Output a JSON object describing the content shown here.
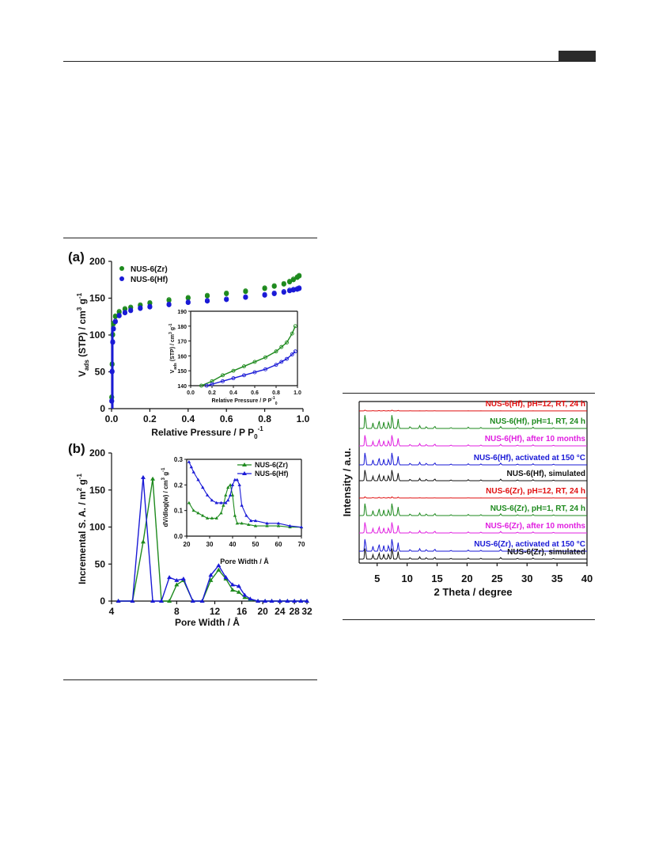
{
  "chart_data": [
    {
      "panel_label": "(a)",
      "type": "scatter",
      "xlabel": "Relative Pressure / P P",
      "xlabel_sub": "0",
      "xlabel_sup": "-1",
      "ylabel": "V",
      "ylabel_sub": "ads",
      "ylabel_rest": " (STP) / cm",
      "ylabel_sup1": "3",
      "ylabel_mid": " g",
      "ylabel_sup2": "-1",
      "xlim": [
        0.0,
        1.0
      ],
      "ylim": [
        0,
        200
      ],
      "xticks": [
        "0.0",
        "0.2",
        "0.4",
        "0.6",
        "0.8",
        "1.0"
      ],
      "yticks": [
        "0",
        "50",
        "100",
        "150",
        "200"
      ],
      "legend": "top-left",
      "series": [
        {
          "name": "NUS-6(Zr)",
          "color": "#1e8a1e",
          "x": [
            0.001,
            0.003,
            0.006,
            0.01,
            0.02,
            0.04,
            0.07,
            0.1,
            0.15,
            0.2,
            0.3,
            0.4,
            0.5,
            0.6,
            0.7,
            0.8,
            0.85,
            0.9,
            0.93,
            0.95,
            0.97,
            0.98
          ],
          "y": [
            15,
            60,
            100,
            115,
            125,
            131,
            135,
            137,
            140,
            143,
            147,
            150,
            153,
            156,
            159,
            163,
            166,
            169,
            172,
            175,
            178,
            180
          ]
        },
        {
          "name": "NUS-6(Hf)",
          "color": "#1a1ad6",
          "x": [
            0.001,
            0.003,
            0.006,
            0.01,
            0.02,
            0.04,
            0.07,
            0.1,
            0.15,
            0.2,
            0.3,
            0.4,
            0.5,
            0.6,
            0.7,
            0.8,
            0.85,
            0.9,
            0.93,
            0.95,
            0.97,
            0.98
          ],
          "y": [
            10,
            50,
            90,
            108,
            118,
            126,
            130,
            133,
            136,
            138,
            141,
            144,
            146,
            148,
            151,
            154,
            156,
            158,
            160,
            161,
            162,
            163
          ]
        }
      ],
      "inset": {
        "xlabel": "Relative Pressure / P P",
        "xlabel_sup": "-1",
        "xlabel_sub": "0",
        "ylabel": "V",
        "ylabel_sub": "ads",
        "ylabel_rest": " (STP) / cm",
        "ylabel_sup1": "3",
        "ylabel_mid": " g",
        "ylabel_sup2": "-1",
        "xlim": [
          0.0,
          1.0
        ],
        "ylim": [
          140,
          190
        ],
        "xticks": [
          "0.0",
          "0.2",
          "0.4",
          "0.6",
          "0.8",
          "1.0"
        ],
        "yticks": [
          "140",
          "150",
          "160",
          "170",
          "180",
          "190"
        ],
        "series": [
          {
            "name": "NUS-6(Zr)",
            "x": [
              0.1,
              0.2,
              0.3,
              0.4,
              0.5,
              0.6,
              0.7,
              0.8,
              0.85,
              0.9,
              0.95,
              0.98
            ],
            "y": [
              140,
              143,
              147,
              150,
              153,
              156,
              159,
              163,
              166,
              169,
              175,
              180
            ]
          },
          {
            "name": "NUS-6(Hf)",
            "x": [
              0.15,
              0.2,
              0.3,
              0.4,
              0.5,
              0.6,
              0.7,
              0.8,
              0.85,
              0.9,
              0.95,
              0.98
            ],
            "y": [
              140,
              141,
              143,
              145,
              147,
              149,
              151,
              154,
              156,
              158,
              161,
              163
            ]
          }
        ]
      }
    },
    {
      "panel_label": "(b)",
      "type": "line",
      "xlabel": "Pore Width / Å",
      "ylabel": "Incremental S. A. / m",
      "ylabel_sup1": "2",
      "ylabel_mid": " g",
      "ylabel_sup2": "-1",
      "xscale": "log",
      "xlim": [
        4,
        32
      ],
      "ylim": [
        0,
        200
      ],
      "xticks": [
        "4",
        "8",
        "12",
        "16",
        "20",
        "24",
        "28",
        "32"
      ],
      "xtick_values": [
        4,
        8,
        12,
        16,
        20,
        24,
        28,
        32
      ],
      "yticks": [
        "0",
        "50",
        "100",
        "150",
        "200"
      ],
      "legend": "top-right",
      "series": [
        {
          "name": "NUS-6(Zr)",
          "color": "#1e8a1e",
          "x": [
            4.3,
            5.0,
            5.6,
            6.2,
            6.8,
            7.4,
            8.0,
            8.6,
            9.5,
            10.5,
            11.5,
            12.5,
            13.5,
            14.5,
            15.5,
            16.5,
            17.5,
            19,
            20.5,
            22,
            24,
            26,
            28,
            30,
            32
          ],
          "y": [
            0,
            0,
            80,
            165,
            0,
            0,
            22,
            28,
            0,
            0,
            28,
            42,
            30,
            15,
            12,
            5,
            2,
            0,
            0,
            0,
            0,
            0,
            0,
            0,
            0
          ]
        },
        {
          "name": "NUS-6(Hf)",
          "color": "#1a1ad6",
          "x": [
            4.3,
            5.0,
            5.6,
            6.2,
            6.8,
            7.4,
            8.0,
            8.6,
            9.5,
            10.5,
            11.5,
            12.5,
            13.5,
            14.5,
            15.5,
            16.5,
            17.5,
            19,
            20.5,
            22,
            24,
            26,
            28,
            30,
            32
          ],
          "y": [
            0,
            0,
            167,
            0,
            0,
            32,
            28,
            30,
            0,
            0,
            35,
            48,
            32,
            22,
            20,
            8,
            3,
            0,
            0,
            0,
            0,
            0,
            0,
            0,
            0
          ]
        }
      ],
      "inset": {
        "xlabel": "Pore Width / Å",
        "ylabel": "dV/dlog(w) / cm",
        "ylabel_sup1": "3",
        "ylabel_mid": " g",
        "ylabel_sup2": "-1",
        "xlim": [
          20,
          70
        ],
        "ylim": [
          0.0,
          0.3
        ],
        "xticks": [
          "20",
          "30",
          "40",
          "50",
          "60",
          "70"
        ],
        "yticks": [
          "0.0",
          "0.1",
          "0.2",
          "0.3"
        ],
        "series": [
          {
            "name": "NUS-6(Zr)",
            "x": [
              21,
              23,
              25,
              27,
              29,
              31,
              33,
              35,
              36,
              37,
              38,
              39,
              40,
              41,
              42,
              44,
              47,
              50,
              55,
              60,
              65,
              70
            ],
            "y": [
              0.13,
              0.1,
              0.09,
              0.08,
              0.07,
              0.07,
              0.07,
              0.09,
              0.12,
              0.16,
              0.19,
              0.2,
              0.16,
              0.08,
              0.05,
              0.05,
              0.045,
              0.04,
              0.04,
              0.04,
              0.035,
              0.035
            ]
          },
          {
            "name": "NUS-6(Hf)",
            "x": [
              21,
              22,
              23,
              25,
              27,
              29,
              31,
              33,
              35,
              37,
              38,
              39,
              40,
              41,
              42,
              43,
              44,
              46,
              48,
              50,
              55,
              60,
              65,
              70
            ],
            "y": [
              0.29,
              0.27,
              0.25,
              0.22,
              0.19,
              0.16,
              0.14,
              0.13,
              0.13,
              0.13,
              0.14,
              0.16,
              0.2,
              0.22,
              0.22,
              0.2,
              0.12,
              0.08,
              0.06,
              0.06,
              0.05,
              0.05,
              0.04,
              0.035
            ]
          }
        ]
      }
    },
    {
      "type": "line",
      "xlabel": "2 Theta / degree",
      "ylabel": "Intensity / a.u.",
      "xlim": [
        2,
        40
      ],
      "xticks": [
        "5",
        "10",
        "15",
        "20",
        "25",
        "30",
        "35",
        "40"
      ],
      "xtick_values": [
        5,
        10,
        15,
        20,
        25,
        30,
        35,
        40
      ],
      "series": [
        {
          "name": "NUS-6(Hf), pH=12, RT, 24 h",
          "color": "#e01010"
        },
        {
          "name": "NUS-6(Hf), pH=1, RT, 24 h",
          "color": "#1e8a1e"
        },
        {
          "name": "NUS-6(Hf), after 10 months",
          "color": "#e020e0"
        },
        {
          "name": "NUS-6(Hf), activated at 150 °C",
          "color": "#1a1ad6"
        },
        {
          "name": "NUS-6(Hf), simulated",
          "color": "#111111"
        },
        {
          "name": "NUS-6(Zr), pH=12, RT, 24 h",
          "color": "#e01010"
        },
        {
          "name": "NUS-6(Zr), pH=1, RT, 24 h",
          "color": "#1e8a1e"
        },
        {
          "name": "NUS-6(Zr), after 10 months",
          "color": "#e020e0"
        },
        {
          "name": "NUS-6(Zr), activated at 150 °C",
          "color": "#1a1ad6"
        },
        {
          "name": "NUS-6(Zr), simulated",
          "color": "#111111"
        }
      ]
    }
  ]
}
